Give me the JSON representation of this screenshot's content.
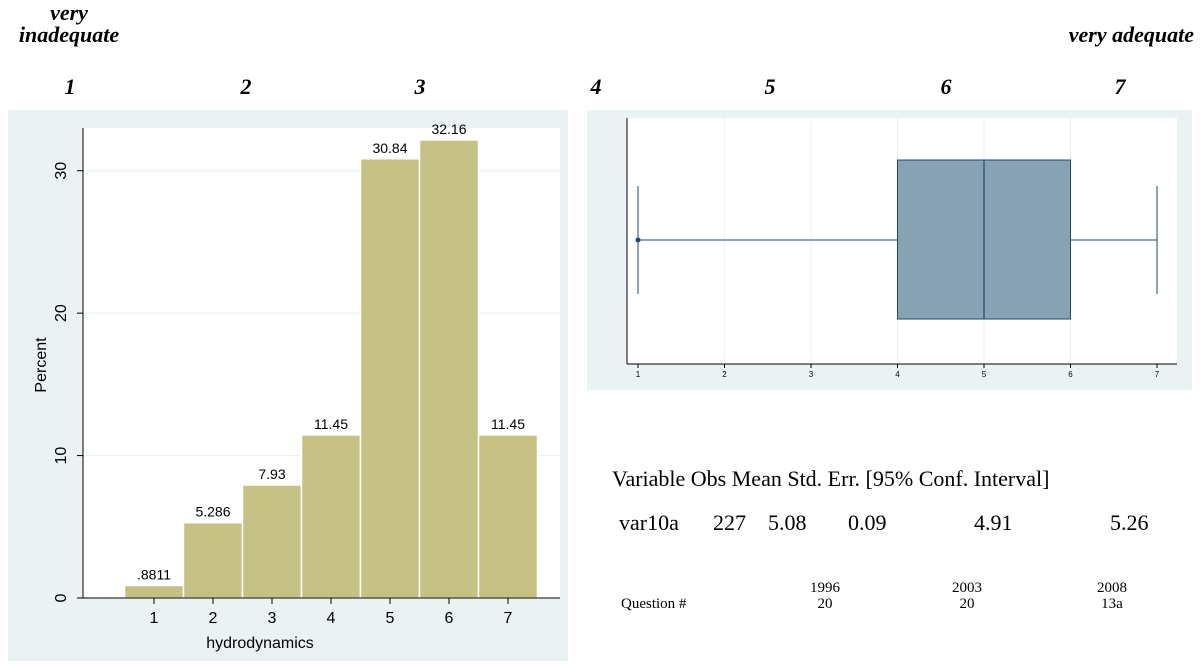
{
  "scale": {
    "left_label_line1": "very",
    "left_label_line2": "inadequate",
    "right_label": "very adequate",
    "numbers": [
      "1",
      "2",
      "3",
      "4",
      "5",
      "6",
      "7"
    ]
  },
  "chart_data": [
    {
      "type": "bar",
      "categories": [
        "1",
        "2",
        "3",
        "4",
        "5",
        "6",
        "7"
      ],
      "values": [
        0.8811,
        5.286,
        7.93,
        11.45,
        30.84,
        32.16,
        11.45
      ],
      "data_labels": [
        ".8811",
        "5.286",
        "7.93",
        "11.45",
        "30.84",
        "32.16",
        "11.45"
      ],
      "title": "",
      "xlabel": "hydrodynamics",
      "ylabel": "Percent",
      "ylim": [
        0,
        33
      ],
      "yticks": [
        "0",
        "10",
        "20",
        "30"
      ],
      "bar_color": "#c5c184",
      "background": "#eaf2f3"
    },
    {
      "type": "box",
      "min": 1,
      "q1": 4,
      "median": 5,
      "q3": 6,
      "max": 7,
      "xlim": [
        1,
        7
      ],
      "xticks": [
        "1",
        "2",
        "3",
        "4",
        "5",
        "6",
        "7"
      ],
      "box_color": "#87a2b5",
      "line_color": "#1f4a6b"
    }
  ],
  "stats": {
    "header": "Variable Obs Mean Std. Err. [95% Conf. Interval]",
    "row": {
      "variable": "var10a",
      "obs": "227",
      "mean": "5.08",
      "std_err": "0.09",
      "ci_low": "4.91",
      "ci_high": "5.26"
    }
  },
  "questions": {
    "label": "Question #",
    "columns": [
      {
        "year": "1996",
        "number": "20"
      },
      {
        "year": "2003",
        "number": "20"
      },
      {
        "year": "2008",
        "number": "13a"
      }
    ]
  }
}
